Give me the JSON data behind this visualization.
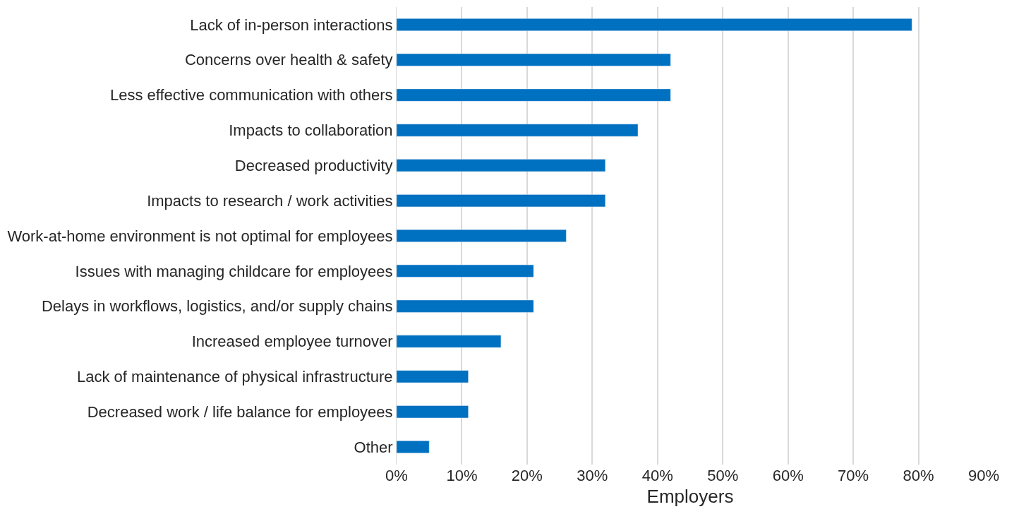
{
  "chart_data": {
    "type": "bar",
    "orientation": "horizontal",
    "xlabel": "Employers",
    "categories": [
      "Lack of in-person interactions",
      "Concerns over health & safety",
      "Less effective communication with others",
      "Impacts to collaboration",
      "Decreased productivity",
      "Impacts to research / work activities",
      "Work-at-home environment is not optimal for employees",
      "Issues with managing childcare for employees",
      "Delays in workflows, logistics, and/or supply chains",
      "Increased employee turnover",
      "Lack of maintenance of physical infrastructure",
      "Decreased work / life balance for employees",
      "Other"
    ],
    "values": [
      79,
      42,
      42,
      37,
      32,
      32,
      26,
      21,
      21,
      16,
      11,
      11,
      5
    ],
    "color": "#0070c0",
    "xlim": [
      0,
      90
    ],
    "xticks": [
      {
        "value": 0,
        "label": "0%"
      },
      {
        "value": 10,
        "label": "10%"
      },
      {
        "value": 20,
        "label": "20%"
      },
      {
        "value": 30,
        "label": "30%"
      },
      {
        "value": 40,
        "label": "40%"
      },
      {
        "value": 50,
        "label": "50%"
      },
      {
        "value": 60,
        "label": "60%"
      },
      {
        "value": 70,
        "label": "70%"
      },
      {
        "value": 80,
        "label": "80%"
      },
      {
        "value": 90,
        "label": "90%"
      }
    ],
    "grid": "x"
  }
}
